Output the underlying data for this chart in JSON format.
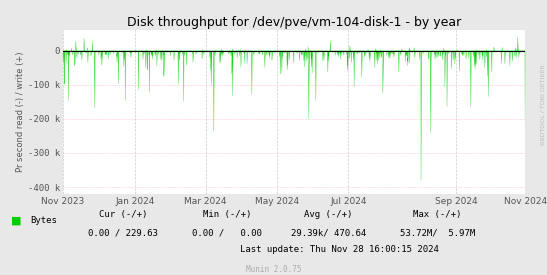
{
  "title": "Disk throughput for /dev/pve/vm-104-disk-1 - by year",
  "ylabel": "Pr second read (-) / write (+)",
  "ylim": [
    -420000,
    60000
  ],
  "ytick_vals": [
    0,
    -100000,
    -200000,
    -300000,
    -400000
  ],
  "ytick_labels": [
    "0",
    "-100 k",
    "-200 k",
    "-300 k",
    "-400 k"
  ],
  "bg_color": "#e8e8e8",
  "plot_bg_color": "#ffffff",
  "line_color": "#00cc00",
  "zero_line_color": "#000000",
  "title_color": "#000000",
  "legend_label": "Bytes",
  "legend_color": "#00cc00",
  "cur_label": "Cur (-/+)",
  "min_label": "Min (-/+)",
  "avg_label": "Avg (-/+)",
  "max_label": "Max (-/+)",
  "cur_val": "0.00 / 229.63",
  "min_val": "0.00 /   0.00",
  "avg_val": "29.39k/ 470.64",
  "max_val": "53.72M/  5.97M",
  "last_update": "Last update: Thu Nov 28 16:00:15 2024",
  "munin_label": "Munin 2.0.75",
  "rrdtool_label": "RRDTOOL / TOBI OETIKER",
  "x_start": 1698710400,
  "x_end": 1732838400,
  "x_tick_positions": [
    1698710400,
    1704067200,
    1709251200,
    1714521600,
    1719792000,
    1727740800,
    1732838400
  ],
  "x_tick_labels": [
    "Nov 2023",
    "Jan 2024",
    "Mar 2024",
    "May 2024",
    "Jul 2024",
    "Sep 2024",
    "Nov 2024"
  ]
}
